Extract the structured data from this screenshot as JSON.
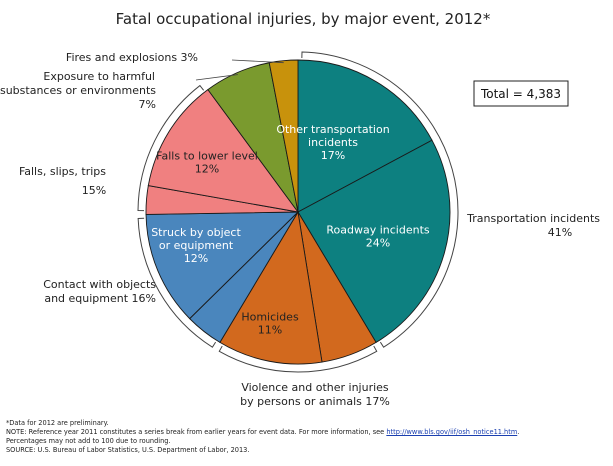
{
  "chart_data": {
    "type": "pie",
    "title": "Fatal occupational injuries, by major event, 2012*",
    "total_label": "Total = 4,383",
    "slices": [
      {
        "name": "Other transportation incidents",
        "lines": [
          "Other transportation",
          "incidents",
          "17%"
        ],
        "value": 17,
        "color": "#0d8080",
        "text_color": "#ffffff"
      },
      {
        "name": "Roadway incidents",
        "lines": [
          "Roadway incidents",
          "24%"
        ],
        "value": 24,
        "color": "#0d8080",
        "text_color": "#ffffff"
      },
      {
        "name": "Violence other",
        "lines": [],
        "value": 6,
        "color": "#d2691e",
        "text_color": "#ffffff"
      },
      {
        "name": "Homicides",
        "lines": [
          "Homicides",
          "11%"
        ],
        "value": 11,
        "color": "#d2691e",
        "text_color": "#222222"
      },
      {
        "name": "Contact with objects and equipment other",
        "lines": [],
        "value": 4,
        "color": "#4a86bd",
        "text_color": "#ffffff"
      },
      {
        "name": "Struck by object or equipment",
        "lines": [
          "Struck by object",
          "or equipment",
          "12%"
        ],
        "value": 12,
        "color": "#4a86bd",
        "text_color": "#ffffff"
      },
      {
        "name": "Falls other",
        "lines": [],
        "value": 3,
        "color": "#f08080",
        "text_color": "#222222"
      },
      {
        "name": "Falls to lower level",
        "lines": [
          "Falls to lower level",
          "12%"
        ],
        "value": 12,
        "color": "#f08080",
        "text_color": "#222222"
      },
      {
        "name": "Exposure to harmful substances or environments",
        "lines": [],
        "value": 7,
        "color": "#7a9a2e",
        "text_color": "#222222"
      },
      {
        "name": "Fires and explosions",
        "lines": [],
        "value": 3,
        "color": "#c8920c",
        "text_color": "#222222"
      }
    ],
    "major_groups": [
      {
        "name": "Transportation incidents",
        "lines": [
          "Transportation incidents",
          "41%"
        ],
        "value": 41
      },
      {
        "name": "Violence and other injuries by persons or animals",
        "lines": [
          "Violence and other injuries",
          "by persons or animals  17%"
        ],
        "value": 17
      },
      {
        "name": "Contact with objects and equipment",
        "lines": [
          "Contact with objects",
          "and equipment 16%"
        ],
        "value": 16
      },
      {
        "name": "Falls, slips, trips",
        "lines": [
          "Falls, slips, trips",
          "15%"
        ],
        "value": 15
      },
      {
        "name": "Exposure to harmful substances or environments",
        "lines": [
          "Exposure to harmful",
          "substances or environments",
          "7%"
        ],
        "value": 7
      },
      {
        "name": "Fires and explosions",
        "lines": [
          "Fires and explosions  3%"
        ],
        "value": 3
      }
    ]
  },
  "footer": {
    "note1": "*Data for 2012 are preliminary.",
    "note2_prefix": "NOTE: Reference year 2011 constitutes a series break from earlier years for event data. For more information, see ",
    "note2_link": "http://www.bls.gov/iif/osh_notice11.htm",
    "note2_suffix": ".",
    "note3": "Percentages may not add to 100 due to rounding.",
    "source": "SOURCE: U.S. Bureau of Labor Statistics, U.S. Department of Labor, 2013."
  }
}
